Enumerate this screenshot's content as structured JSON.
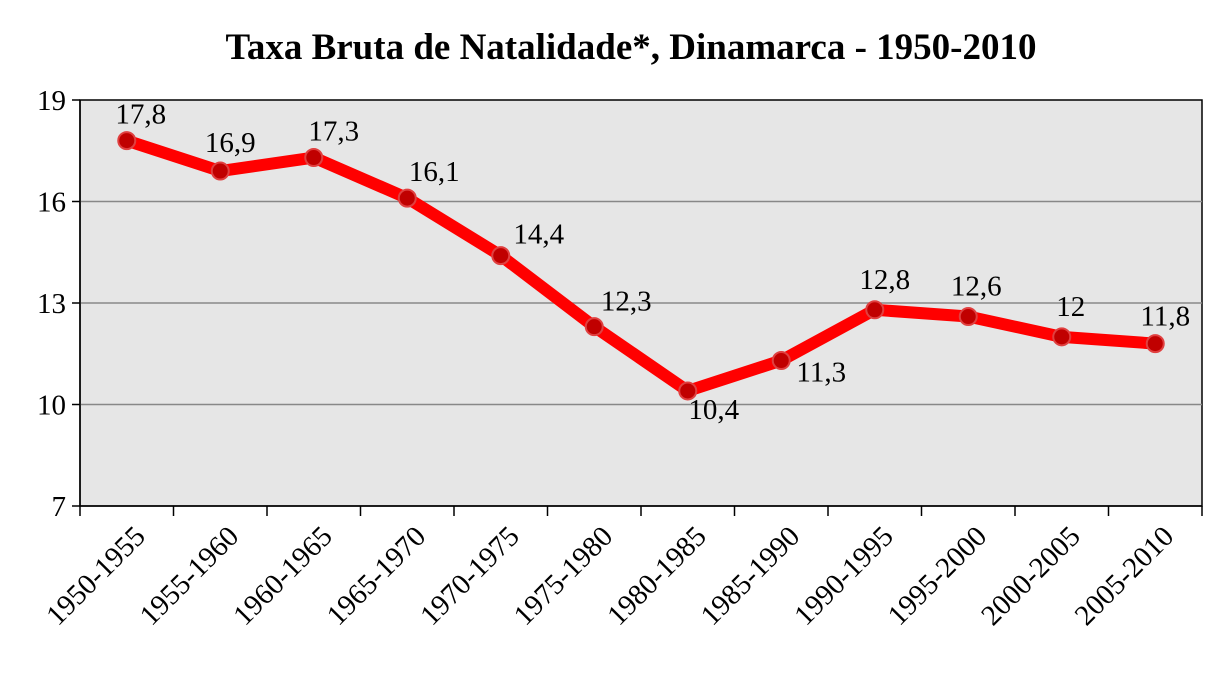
{
  "chart_data": {
    "type": "line",
    "title": "Taxa Bruta de Natalidade*, Dinamarca - 1950-2010",
    "xlabel": "",
    "ylabel": "",
    "ylim": [
      7,
      19
    ],
    "yticks": [
      7,
      10,
      13,
      16,
      19
    ],
    "grid": true,
    "legend": "none",
    "categories": [
      "1950-1955",
      "1955-1960",
      "1960-1965",
      "1965-1970",
      "1970-1975",
      "1975-1980",
      "1980-1985",
      "1985-1990",
      "1990-1995",
      "1995-2000",
      "2000-2005",
      "2005-2010"
    ],
    "series": [
      {
        "values": [
          17.8,
          16.9,
          17.3,
          16.1,
          14.4,
          12.3,
          10.4,
          11.3,
          12.8,
          12.6,
          12,
          11.8
        ],
        "data_labels": [
          "17,8",
          "16,9",
          "17,3",
          "16,1",
          "14,4",
          "12,3",
          "10,4",
          "11,3",
          "12,8",
          "12,6",
          "12",
          "11,8"
        ],
        "color": "#ff0000",
        "marker_color": "#c00000"
      }
    ],
    "plot_background": "#e6e6e6",
    "gridline_color": "#888888"
  }
}
